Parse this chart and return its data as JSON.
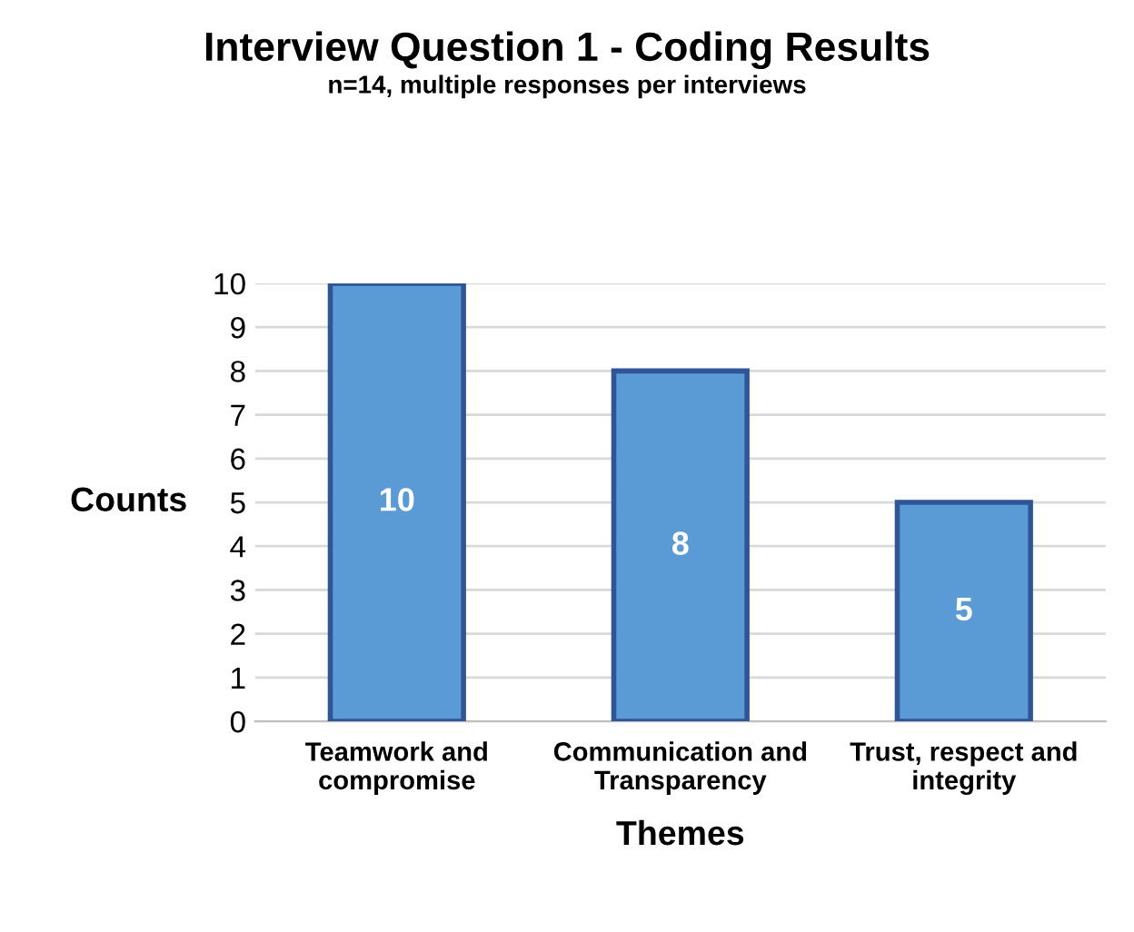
{
  "chart_data": {
    "type": "bar",
    "title": "Interview Question 1 - Coding Results",
    "subtitle": "n=14, multiple responses per interviews",
    "xlabel": "Themes",
    "ylabel": "Counts",
    "categories": [
      "Teamwork and\ncompromise",
      "Communication and\nTransparency",
      "Trust, respect and\nintegrity"
    ],
    "values": [
      10,
      8,
      5
    ],
    "color": "#5b9bd5",
    "ylim": [
      0,
      10
    ],
    "yticks": [
      0,
      1,
      2,
      3,
      4,
      5,
      6,
      7,
      8,
      9,
      10
    ],
    "grid": "y",
    "data_labels": true
  }
}
